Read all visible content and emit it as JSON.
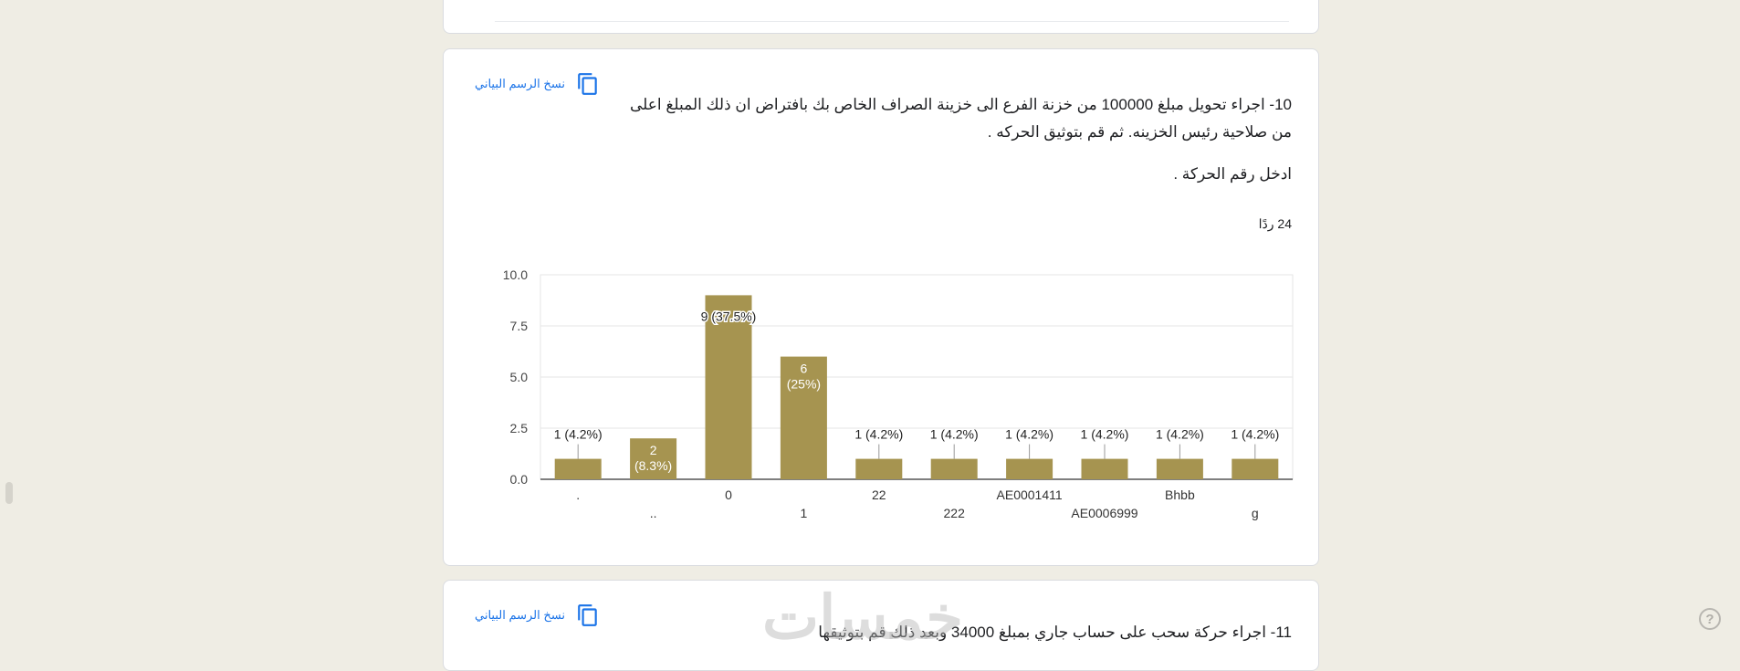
{
  "copy_chart_label": "نسخ الرسم البياني",
  "question": {
    "title": "10- اجراء تحويل مبلغ 100000 من خزنة الفرع الى خزينة الصراف الخاص بك بافتراض ان ذلك المبلغ اعلى من صلاحية رئيس الخزينه. ثم قم بتوثيق الحركه .",
    "description": "ادخل رقم الحركة .",
    "responses": "24 ردًا"
  },
  "next_question": {
    "title": "11- اجراء حركة سحب على حساب جاري بمبلغ 34000 وبعد ذلك قم بتوثيقها"
  },
  "watermark": "خمسات",
  "help_icon": "?",
  "colors": {
    "bar": "#a69450",
    "link": "#1a73e8",
    "grid": "#e6e6e6",
    "axis": "#333333"
  },
  "chart_data": {
    "type": "bar",
    "categories": [
      ".",
      "..",
      "0",
      "1",
      "22",
      "222",
      "AE0001411",
      "AE0006999",
      "Bhbb",
      "g"
    ],
    "values": [
      1,
      2,
      9,
      6,
      1,
      1,
      1,
      1,
      1,
      1
    ],
    "data_labels": [
      "1 (4.2%)",
      "2\n(8.3%)",
      "9 (37.5%)",
      "6\n(25%)",
      "1 (4.2%)",
      "1 (4.2%)",
      "1 (4.2%)",
      "1 (4.2%)",
      "1 (4.2%)",
      "1 (4.2%)"
    ],
    "label_inside": [
      false,
      true,
      true,
      true,
      false,
      false,
      false,
      false,
      false,
      false
    ],
    "yticks": [
      "0.0",
      "2.5",
      "5.0",
      "7.5",
      "10.0"
    ],
    "ylim": [
      0,
      10
    ],
    "grid": true,
    "title": "",
    "xlabel": "",
    "ylabel": ""
  }
}
